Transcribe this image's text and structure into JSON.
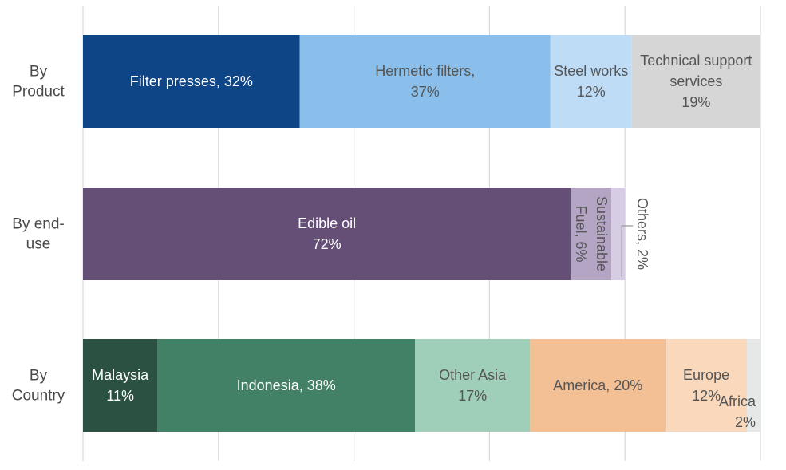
{
  "chart_data": {
    "type": "bar",
    "stacked": true,
    "orientation": "horizontal",
    "unit": "%",
    "xlim": [
      0,
      100
    ],
    "grid": true,
    "title": "",
    "xlabel": "",
    "ylabel": "",
    "categories": [
      "By Product",
      "By end-use",
      "By Country"
    ],
    "bars": [
      {
        "category_lines": [
          "By",
          "Product"
        ],
        "segments": [
          {
            "name": "Filter presses",
            "value": 32,
            "color": "#0E4587",
            "text_color": "#ffffff",
            "label": [
              "Filter presses, 32%"
            ]
          },
          {
            "name": "Hermetic filters",
            "value": 37,
            "color": "#8ABFEB",
            "text_color": "#555555",
            "label": [
              "Hermetic filters,",
              "37%"
            ]
          },
          {
            "name": "Steel works",
            "value": 12,
            "color": "#BEDCF6",
            "text_color": "#555555",
            "label": [
              "Steel works",
              "12%"
            ]
          },
          {
            "name": "Technical support services",
            "value": 19,
            "color": "#D6D6D6",
            "text_color": "#555555",
            "label": [
              "Technical support",
              "services",
              "19%"
            ]
          }
        ]
      },
      {
        "category_lines": [
          "By end-",
          "use"
        ],
        "segments": [
          {
            "name": "Edible oil",
            "value": 72,
            "color": "#654F77",
            "text_color": "#ffffff",
            "label": [
              "Edible oil",
              "72%"
            ]
          },
          {
            "name": "Sustainable Fuel",
            "value": 6,
            "color": "#B4A5C5",
            "text_color": "#555555",
            "label": [
              "Sustainable",
              "Fuel, 6%"
            ],
            "rotated": true
          },
          {
            "name": "Others",
            "value": 2,
            "color": "#D6CCE4",
            "text_color": "#555555",
            "label": [
              "Others, 2%"
            ],
            "rotated": true,
            "outside": true
          }
        ]
      },
      {
        "category_lines": [
          "By",
          "Country"
        ],
        "segments": [
          {
            "name": "Malaysia",
            "value": 11,
            "color": "#2B5142",
            "text_color": "#ffffff",
            "label": [
              "Malaysia",
              "11%"
            ]
          },
          {
            "name": "Indonesia",
            "value": 38,
            "color": "#438166",
            "text_color": "#ffffff",
            "label": [
              "Indonesia, 38%"
            ]
          },
          {
            "name": "Other Asia",
            "value": 17,
            "color": "#9FCEB9",
            "text_color": "#555555",
            "label": [
              "Other Asia",
              "17%"
            ]
          },
          {
            "name": "America",
            "value": 20,
            "color": "#F3BF94",
            "text_color": "#555555",
            "label": [
              "America, 20%"
            ]
          },
          {
            "name": "Europe",
            "value": 12,
            "color": "#F9D8BC",
            "text_color": "#555555",
            "label": [
              "Europe",
              "12%"
            ]
          },
          {
            "name": "Africa",
            "value": 2,
            "color": "#E6E8E8",
            "text_color": "#555555",
            "label": [
              "Africa",
              "2%"
            ]
          }
        ]
      }
    ]
  }
}
